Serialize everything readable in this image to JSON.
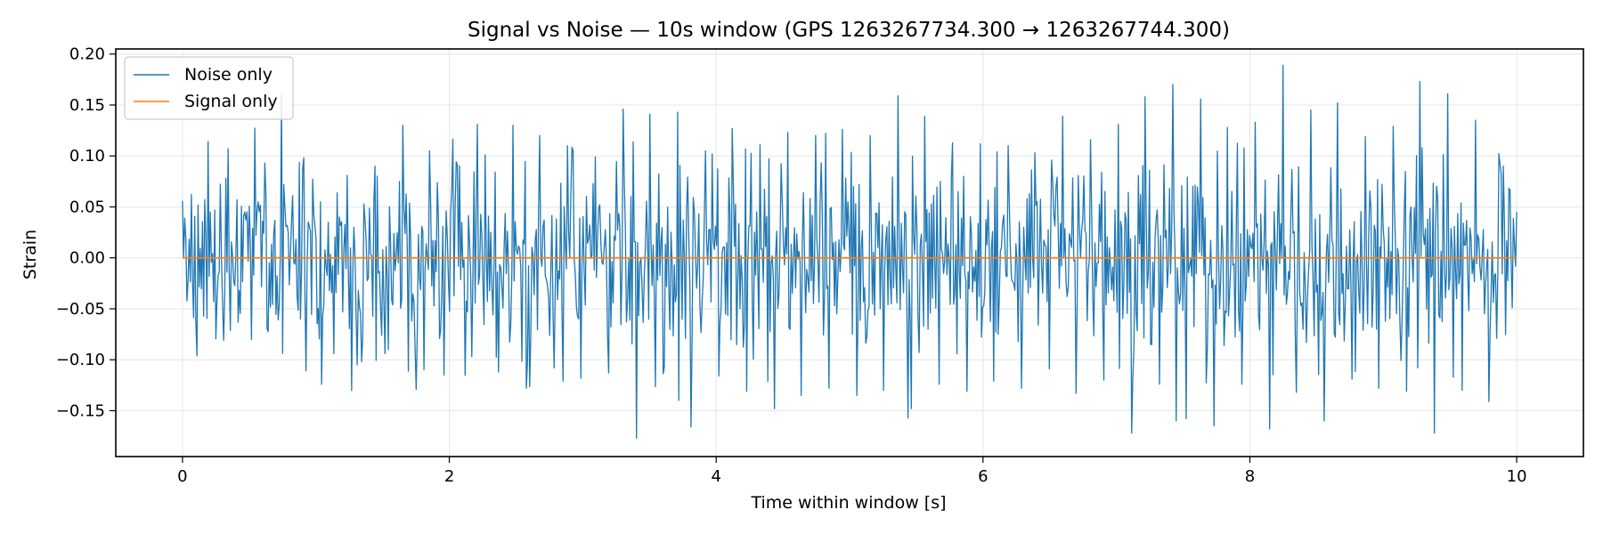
{
  "chart_data": {
    "type": "line",
    "title": "Signal vs Noise — 10s window (GPS 1263267734.300 → 1263267744.300)",
    "xlabel": "Time within window [s]",
    "ylabel": "Strain",
    "xlim": [
      -0.5,
      10.5
    ],
    "ylim": [
      -0.195,
      0.205
    ],
    "xticks": [
      0,
      2,
      4,
      6,
      8,
      10
    ],
    "xtick_labels": [
      "0",
      "2",
      "4",
      "6",
      "8",
      "10"
    ],
    "yticks": [
      -0.15,
      -0.1,
      -0.05,
      0.0,
      0.05,
      0.1,
      0.15,
      0.2
    ],
    "ytick_labels": [
      "−0.15",
      "−0.10",
      "−0.05",
      "0.00",
      "0.05",
      "0.10",
      "0.15",
      "0.20"
    ],
    "grid": true,
    "legend_position": "top-left",
    "colors": {
      "noise": "#1f77b4",
      "signal": "#ff7f0e"
    },
    "noise_envelope": {
      "x_range": [
        0,
        10
      ],
      "n_points": 1200,
      "approx_abs_amplitude": 0.05,
      "observed_max": 0.19,
      "observed_min": -0.177
    },
    "series": [
      {
        "name": "Noise only",
        "x_start": 0,
        "x_end": 10,
        "values": [
          0.056,
          -0.062,
          0.045,
          -0.081,
          0.057,
          -0.08,
          0.093,
          -0.045,
          0.061,
          -0.111,
          0.055,
          -0.094,
          0.081,
          -0.102,
          0.09,
          -0.09,
          0.13,
          -0.129,
          0.105,
          -0.115,
          0.091,
          -0.097,
          0.101,
          -0.112,
          0.13,
          -0.128,
          0.12,
          -0.108,
          0.11,
          -0.118,
          0.099,
          -0.113,
          0.146,
          -0.177,
          0.141,
          -0.107,
          0.143,
          -0.166,
          0.105,
          -0.116,
          0.127,
          -0.131,
          0.111,
          -0.148,
          0.123,
          -0.135,
          0.12,
          -0.128,
          0.126,
          -0.135,
          0.12,
          -0.13,
          0.159,
          -0.148,
          0.139,
          -0.124,
          0.113,
          -0.131,
          0.112,
          -0.121,
          0.11,
          -0.128,
          0.103,
          -0.109,
          0.139,
          -0.133,
          0.116,
          -0.12,
          0.131,
          -0.172,
          0.158,
          -0.124,
          0.17,
          -0.158,
          0.156,
          -0.165,
          0.128,
          -0.124,
          0.133,
          -0.168,
          0.189,
          -0.132,
          0.145,
          -0.16,
          0.152,
          -0.119,
          0.119,
          -0.128,
          0.129,
          -0.131,
          0.173,
          -0.172,
          0.161,
          -0.13,
          0.135,
          -0.141,
          0.09,
          0.045
        ]
      },
      {
        "name": "Signal only",
        "x": [
          0,
          10
        ],
        "values": [
          0.0,
          0.0
        ]
      }
    ]
  }
}
